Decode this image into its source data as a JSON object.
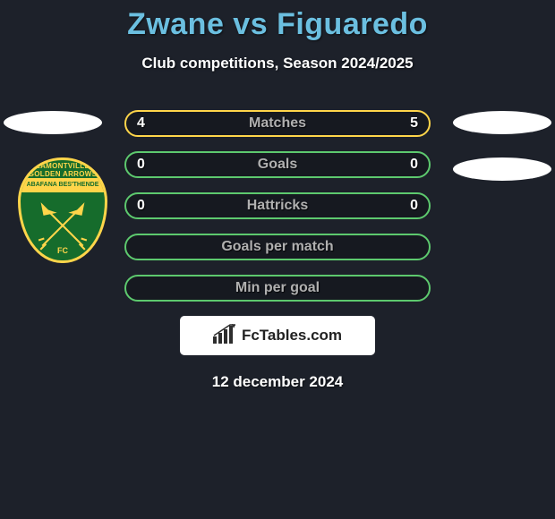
{
  "title_color": "#6bbfe0",
  "title": "Zwane vs Figuaredo",
  "subtitle": "Club competitions, Season 2024/2025",
  "crest": {
    "top_text": "LAMONTVILLE GOLDEN ARROWS",
    "banner_text": "ABAFANA BES'THENDE",
    "fc_text": "FC",
    "shield_color": "#166c2c",
    "accent_color": "#ffd54a"
  },
  "colors": {
    "player1": "#ffd54a",
    "player2": "#5dc96e",
    "row_bg": "rgba(0,0,0,0.22)",
    "label": "#b0b0b0",
    "value": "#ffffff"
  },
  "rows": [
    {
      "key": "matches",
      "label": "Matches",
      "left": "4",
      "right": "5",
      "border": "#ffd54a"
    },
    {
      "key": "goals",
      "label": "Goals",
      "left": "0",
      "right": "0",
      "border": "#5dc96e"
    },
    {
      "key": "hattricks",
      "label": "Hattricks",
      "left": "0",
      "right": "0",
      "border": "#5dc96e"
    },
    {
      "key": "goals-per-match",
      "label": "Goals per match",
      "left": "",
      "right": "",
      "border": "#5dc96e"
    },
    {
      "key": "min-per-goal",
      "label": "Min per goal",
      "left": "",
      "right": "",
      "border": "#5dc96e"
    }
  ],
  "site_badge": "FcTables.com",
  "footer_date": "12 december 2024"
}
